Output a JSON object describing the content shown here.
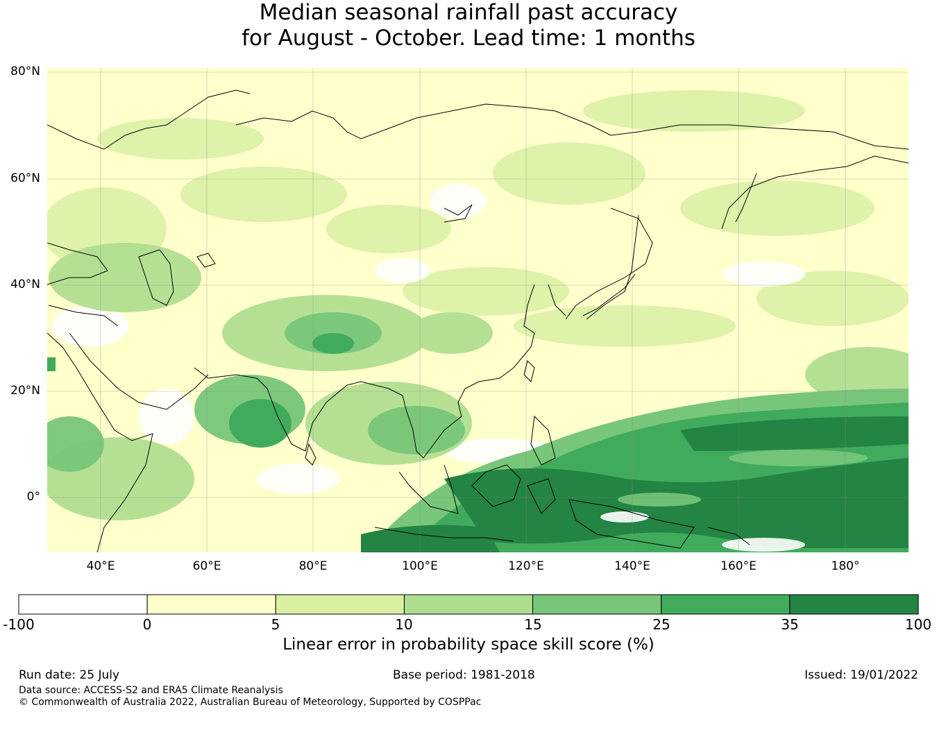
{
  "title": {
    "line1": "Median seasonal rainfall past accuracy",
    "line2": "for August - October. Lead time: 1 months"
  },
  "map": {
    "lat_labels": [
      "80°N",
      "60°N",
      "40°N",
      "20°N",
      "0°"
    ],
    "lon_labels": [
      "40°E",
      "60°E",
      "80°E",
      "100°E",
      "120°E",
      "140°E",
      "160°E",
      "180°"
    ],
    "region": "Asia / Western Pacific",
    "lon_range": [
      30,
      192
    ],
    "lat_range": [
      -10,
      81
    ]
  },
  "colorbar": {
    "ticks": [
      "-100",
      "0",
      "5",
      "10",
      "15",
      "25",
      "35",
      "100"
    ],
    "colors": [
      "#ffffff",
      "#ffffcc",
      "#d9f0a3",
      "#addd8e",
      "#78c679",
      "#41ab5d",
      "#238443"
    ],
    "label": "Linear error in probability space skill score (%)"
  },
  "footer": {
    "run_date": "Run date: 25 July",
    "base_period": "Base period: 1981-2018",
    "issued": "Issued: 19/01/2022",
    "data_source": "Data source: ACCESS-S2 and ERA5 Climate Reanalysis",
    "copyright": "© Commonwealth of Australia 2022, Australian Bureau of Meteorology, Supported by COSPPac"
  }
}
